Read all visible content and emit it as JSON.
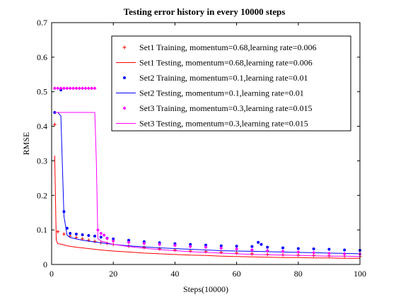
{
  "chart_data": {
    "type": "line",
    "title": "Testing error history in every 10000 steps",
    "xlabel": "Steps(10000)",
    "ylabel": "RMSE",
    "xlim": [
      0,
      100
    ],
    "ylim": [
      0,
      0.7
    ],
    "xticks": [
      0,
      20,
      40,
      60,
      80,
      100
    ],
    "yticks": [
      0,
      0.1,
      0.2,
      0.3,
      0.4,
      0.5,
      0.6,
      0.7
    ],
    "grid": false,
    "legend_position": "top-right",
    "series": [
      {
        "name": "Set1 Training, momentum=0.68,learning rate=0.006",
        "style": "markers",
        "marker": "plus",
        "color": "#ff0000",
        "x": [
          1,
          2,
          4,
          6,
          8,
          10,
          12,
          14,
          16,
          18,
          20,
          25,
          30,
          35,
          40,
          45,
          50,
          55,
          60,
          65,
          70,
          75,
          80,
          85,
          90,
          95,
          100
        ],
        "y": [
          0.405,
          0.095,
          0.088,
          0.082,
          0.078,
          0.074,
          0.07,
          0.067,
          0.063,
          0.061,
          0.058,
          0.053,
          0.049,
          0.045,
          0.042,
          0.039,
          0.037,
          0.035,
          0.033,
          0.031,
          0.029,
          0.028,
          0.027,
          0.026,
          0.025,
          0.024,
          0.023
        ]
      },
      {
        "name": "Set1 Testing, momentum=0.68,learning rate=0.006",
        "style": "line",
        "color": "#ff0000",
        "x": [
          1,
          1.5,
          2,
          3,
          5,
          8,
          12,
          16,
          20,
          25,
          30,
          35,
          40,
          45,
          50,
          55,
          60,
          65,
          70,
          75,
          80,
          85,
          90,
          95,
          100
        ],
        "y": [
          0.315,
          0.07,
          0.06,
          0.059,
          0.054,
          0.05,
          0.046,
          0.042,
          0.039,
          0.036,
          0.033,
          0.031,
          0.029,
          0.027,
          0.026,
          0.024,
          0.023,
          0.022,
          0.021,
          0.02,
          0.02,
          0.019,
          0.019,
          0.018,
          0.018
        ]
      },
      {
        "name": "Set2 Training, momentum=0.1,learning rate=0.01",
        "style": "markers",
        "marker": "dot",
        "color": "#0000ff",
        "x": [
          1,
          3,
          4,
          5,
          6,
          8,
          10,
          12,
          14,
          16,
          18,
          20,
          25,
          30,
          35,
          40,
          45,
          50,
          55,
          60,
          65,
          67,
          68,
          70,
          75,
          80,
          85,
          90,
          95,
          100
        ],
        "y": [
          0.44,
          0.505,
          0.153,
          0.105,
          0.09,
          0.088,
          0.086,
          0.084,
          0.082,
          0.079,
          0.076,
          0.074,
          0.07,
          0.066,
          0.063,
          0.06,
          0.058,
          0.056,
          0.054,
          0.053,
          0.052,
          0.064,
          0.058,
          0.05,
          0.048,
          0.046,
          0.045,
          0.044,
          0.042,
          0.041
        ]
      },
      {
        "name": "Set2 Testing, momentum=0.1,learning rate=0.01",
        "style": "line",
        "color": "#0000ff",
        "x": [
          1,
          2,
          3,
          4,
          5,
          6,
          8,
          10,
          15,
          20,
          25,
          30,
          35,
          40,
          45,
          50,
          55,
          60,
          65,
          70,
          75,
          80,
          85,
          90,
          95,
          100
        ],
        "y": [
          0.44,
          0.44,
          0.43,
          0.14,
          0.085,
          0.078,
          0.074,
          0.07,
          0.064,
          0.058,
          0.054,
          0.051,
          0.048,
          0.046,
          0.044,
          0.042,
          0.04,
          0.039,
          0.038,
          0.037,
          0.036,
          0.035,
          0.034,
          0.033,
          0.032,
          0.031
        ]
      },
      {
        "name": "Set3 Training, momentum=0.3,learning rate=0.015",
        "style": "markers",
        "marker": "diamond",
        "color": "#ff00ff",
        "x": [
          1,
          2,
          3,
          4,
          5,
          6,
          7,
          8,
          9,
          10,
          11,
          12,
          13,
          14,
          15,
          16,
          17,
          18,
          20,
          25,
          30,
          35,
          40,
          45,
          50,
          55,
          60,
          65,
          70,
          75,
          80,
          85,
          90,
          95,
          100
        ],
        "y": [
          0.51,
          0.51,
          0.51,
          0.51,
          0.51,
          0.51,
          0.51,
          0.51,
          0.51,
          0.51,
          0.51,
          0.51,
          0.51,
          0.51,
          0.1,
          0.09,
          0.085,
          0.075,
          0.068,
          0.064,
          0.061,
          0.058,
          0.055,
          0.052,
          0.05,
          0.047,
          0.045,
          0.042,
          0.04,
          0.038,
          0.036,
          0.034,
          0.032,
          0.031,
          0.03
        ]
      },
      {
        "name": "Set3 Testing, momentum=0.3,learning rate=0.015",
        "style": "line",
        "color": "#ff00ff",
        "x": [
          1,
          5,
          10,
          14,
          14.5,
          15,
          16,
          18,
          20,
          25,
          30,
          35,
          40,
          45,
          50,
          55,
          60,
          65,
          70,
          75,
          80,
          85,
          90,
          95,
          100
        ],
        "y": [
          0.44,
          0.44,
          0.44,
          0.44,
          0.3,
          0.075,
          0.068,
          0.063,
          0.058,
          0.052,
          0.047,
          0.043,
          0.04,
          0.037,
          0.035,
          0.033,
          0.031,
          0.029,
          0.028,
          0.027,
          0.026,
          0.025,
          0.024,
          0.024,
          0.023
        ]
      }
    ]
  }
}
